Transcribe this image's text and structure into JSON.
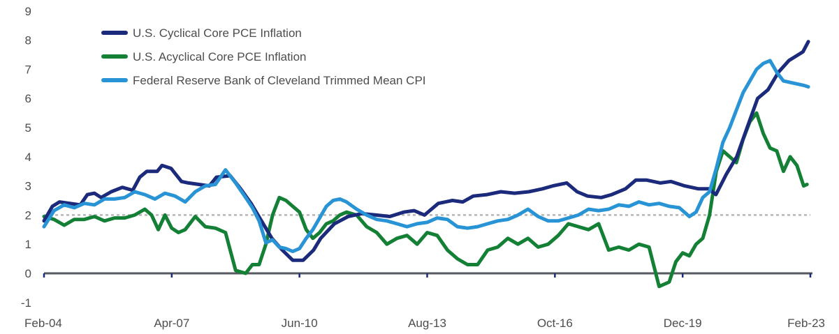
{
  "chart_data": {
    "type": "line",
    "title": "",
    "xlabel": "",
    "ylabel": "",
    "x_unit": "months since Feb-04",
    "xlim": [
      0,
      228
    ],
    "ylim": [
      -1,
      9
    ],
    "yticks": [
      -1,
      0,
      1,
      2,
      3,
      4,
      5,
      6,
      7,
      8,
      9
    ],
    "xticks": [
      {
        "pos": 0,
        "label": "Feb-04"
      },
      {
        "pos": 38,
        "label": "Apr-07"
      },
      {
        "pos": 76,
        "label": "Jun-10"
      },
      {
        "pos": 114,
        "label": "Aug-13"
      },
      {
        "pos": 152,
        "label": "Oct-16"
      },
      {
        "pos": 190,
        "label": "Dec-19"
      },
      {
        "pos": 228,
        "label": "Feb-23"
      }
    ],
    "reference_line": {
      "value": 2,
      "style": "dotted",
      "color": "#b5b5b5"
    },
    "grid": false,
    "legend_position": "top-left",
    "series": [
      {
        "name": "U.S. Cyclical Core PCE Inflation",
        "color": "#1b2a7a",
        "x": [
          0,
          2.5,
          4.6,
          7.7,
          10.8,
          12.9,
          15,
          17,
          20,
          23.3,
          26.4,
          28.5,
          30.6,
          33.7,
          35.1,
          37.8,
          40.9,
          43,
          46.1,
          49.2,
          51.3,
          55.4,
          58.5,
          61.6,
          64.7,
          67.8,
          70.9,
          74,
          77.1,
          80.2,
          82.3,
          86.4,
          90.5,
          94.6,
          98.8,
          102.9,
          107,
          110.1,
          113.2,
          117.3,
          121.5,
          124.6,
          127.7,
          131.8,
          135.9,
          140,
          144.2,
          148.3,
          151.4,
          155.5,
          158.6,
          161.7,
          165.8,
          168.9,
          173,
          176.1,
          179.2,
          183.4,
          186.5,
          190.6,
          194.7,
          197.8,
          199.9,
          203,
          206.1,
          209.2,
          212.3,
          215.4,
          218.5,
          221.6,
          225.8,
          227.4
        ],
        "values": [
          1.8,
          2.3,
          2.45,
          2.4,
          2.35,
          2.7,
          2.75,
          2.6,
          2.8,
          2.95,
          2.85,
          3.3,
          3.5,
          3.5,
          3.7,
          3.6,
          3.15,
          3.1,
          3.05,
          3.0,
          3.3,
          3.35,
          2.9,
          2.4,
          1.8,
          1.2,
          0.8,
          0.45,
          0.45,
          0.8,
          1.2,
          1.7,
          1.95,
          2.05,
          2.0,
          1.95,
          2.1,
          2.15,
          2.0,
          2.4,
          2.5,
          2.45,
          2.65,
          2.7,
          2.8,
          2.75,
          2.8,
          2.9,
          3.0,
          3.1,
          2.8,
          2.65,
          2.6,
          2.7,
          2.9,
          3.2,
          3.2,
          3.1,
          3.15,
          3.0,
          2.9,
          2.9,
          2.7,
          3.4,
          4.0,
          5.0,
          6.0,
          6.3,
          6.9,
          7.3,
          7.6,
          7.95
        ]
      },
      {
        "name": "U.S. Acyclical Core PCE Inflation",
        "color": "#138035",
        "x": [
          0,
          3,
          6,
          9,
          12,
          15,
          18,
          21,
          24,
          27,
          30,
          32,
          34,
          36,
          38,
          40,
          42,
          45,
          48,
          51,
          54,
          57,
          60,
          62,
          64,
          66,
          68,
          70,
          72,
          74,
          76,
          78,
          80,
          82,
          84,
          86,
          88,
          90,
          93,
          96,
          99,
          102,
          105,
          108,
          111,
          114,
          117,
          120,
          123,
          126,
          129,
          132,
          135,
          138,
          141,
          144,
          147,
          150,
          153,
          156,
          159,
          162,
          165,
          168,
          171,
          174,
          177,
          180,
          183,
          186,
          188,
          190,
          192,
          194,
          196,
          198,
          200,
          202,
          204,
          206,
          208,
          210,
          212,
          214,
          216,
          218,
          220,
          222,
          224,
          226,
          227
        ],
        "values": [
          1.95,
          1.85,
          1.65,
          1.85,
          1.85,
          1.95,
          1.8,
          1.9,
          1.9,
          2.0,
          2.2,
          2.0,
          1.5,
          2.0,
          1.55,
          1.4,
          1.5,
          1.95,
          1.6,
          1.55,
          1.4,
          0.1,
          0.0,
          0.3,
          0.3,
          1.0,
          2.0,
          2.6,
          2.5,
          2.3,
          2.1,
          1.5,
          1.2,
          1.4,
          1.7,
          1.8,
          2.0,
          2.1,
          2.0,
          1.6,
          1.4,
          1.0,
          1.2,
          1.3,
          1.0,
          1.4,
          1.3,
          0.8,
          0.5,
          0.3,
          0.3,
          0.8,
          0.9,
          1.2,
          1.0,
          1.2,
          0.9,
          1.0,
          1.3,
          1.7,
          1.6,
          1.5,
          1.7,
          0.8,
          0.9,
          0.8,
          1.0,
          0.9,
          -0.45,
          -0.3,
          0.4,
          0.7,
          0.6,
          1.0,
          1.2,
          2.0,
          3.5,
          4.2,
          4.0,
          3.8,
          4.6,
          5.2,
          5.5,
          4.8,
          4.3,
          4.2,
          3.5,
          4.0,
          3.7,
          3.0,
          3.05
        ]
      },
      {
        "name": "Federal Reserve Bank of Cleveland Trimmed Mean CPI",
        "color": "#2894d6",
        "x": [
          0,
          3,
          6,
          9,
          12,
          15,
          18,
          21,
          24,
          27,
          30,
          33,
          36,
          39,
          42,
          45,
          48,
          51,
          54,
          57,
          60,
          62,
          64,
          66,
          68,
          70,
          72,
          74,
          76,
          78,
          80,
          82,
          84,
          86,
          88,
          90,
          93,
          96,
          99,
          102,
          105,
          108,
          111,
          114,
          117,
          120,
          123,
          126,
          129,
          132,
          135,
          138,
          141,
          144,
          147,
          150,
          153,
          156,
          159,
          162,
          165,
          168,
          171,
          174,
          177,
          180,
          183,
          186,
          189,
          192,
          194,
          196,
          198,
          200,
          202,
          204,
          206,
          208,
          210,
          212,
          214,
          216,
          218,
          220,
          222,
          224,
          226,
          227.4
        ],
        "values": [
          1.6,
          2.15,
          2.35,
          2.25,
          2.4,
          2.35,
          2.55,
          2.55,
          2.6,
          2.8,
          2.7,
          2.55,
          2.75,
          2.65,
          2.45,
          2.8,
          3.0,
          3.05,
          3.55,
          3.1,
          2.6,
          2.25,
          1.8,
          1.05,
          1.15,
          0.9,
          0.85,
          0.75,
          0.85,
          1.2,
          1.5,
          1.9,
          2.3,
          2.5,
          2.55,
          2.45,
          2.2,
          2.0,
          1.85,
          1.8,
          1.7,
          1.6,
          1.7,
          1.75,
          1.9,
          1.85,
          1.6,
          1.55,
          1.6,
          1.7,
          1.8,
          1.85,
          2.0,
          2.2,
          1.95,
          1.8,
          1.8,
          1.9,
          2.0,
          2.2,
          2.15,
          2.2,
          2.35,
          2.3,
          2.45,
          2.35,
          2.4,
          2.3,
          2.25,
          1.95,
          2.1,
          2.6,
          2.8,
          3.6,
          4.5,
          5.0,
          5.6,
          6.2,
          6.6,
          7.0,
          7.2,
          7.3,
          6.9,
          6.6,
          6.55,
          6.5,
          6.45,
          6.4
        ]
      }
    ]
  }
}
